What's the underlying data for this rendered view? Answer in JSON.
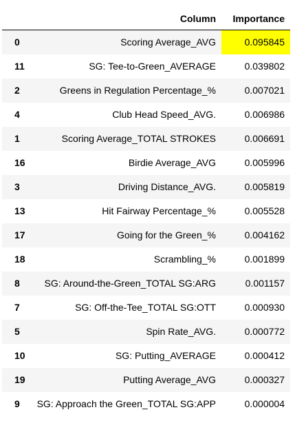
{
  "table": {
    "headers": {
      "index": "",
      "column": "Column",
      "importance": "Importance"
    },
    "highlight_color": "#ffff00",
    "rows": [
      {
        "index": "0",
        "column": "Scoring Average_AVG",
        "importance": "0.095845",
        "highlight": true
      },
      {
        "index": "11",
        "column": "SG: Tee-to-Green_AVERAGE",
        "importance": "0.039802",
        "highlight": false
      },
      {
        "index": "2",
        "column": "Greens in Regulation Percentage_%",
        "importance": "0.007021",
        "highlight": false
      },
      {
        "index": "4",
        "column": "Club Head Speed_AVG.",
        "importance": "0.006986",
        "highlight": false
      },
      {
        "index": "1",
        "column": "Scoring Average_TOTAL STROKES",
        "importance": "0.006691",
        "highlight": false
      },
      {
        "index": "16",
        "column": "Birdie Average_AVG",
        "importance": "0.005996",
        "highlight": false
      },
      {
        "index": "3",
        "column": "Driving Distance_AVG.",
        "importance": "0.005819",
        "highlight": false
      },
      {
        "index": "13",
        "column": "Hit Fairway Percentage_%",
        "importance": "0.005528",
        "highlight": false
      },
      {
        "index": "17",
        "column": "Going for the Green_%",
        "importance": "0.004162",
        "highlight": false
      },
      {
        "index": "18",
        "column": "Scrambling_%",
        "importance": "0.001899",
        "highlight": false
      },
      {
        "index": "8",
        "column": "SG: Around-the-Green_TOTAL SG:ARG",
        "importance": "0.001157",
        "highlight": false
      },
      {
        "index": "7",
        "column": "SG: Off-the-Tee_TOTAL SG:OTT",
        "importance": "0.000930",
        "highlight": false
      },
      {
        "index": "5",
        "column": "Spin Rate_AVG.",
        "importance": "0.000772",
        "highlight": false
      },
      {
        "index": "10",
        "column": "SG: Putting_AVERAGE",
        "importance": "0.000412",
        "highlight": false
      },
      {
        "index": "19",
        "column": "Putting Average_AVG",
        "importance": "0.000327",
        "highlight": false
      },
      {
        "index": "9",
        "column": "SG: Approach the Green_TOTAL SG:APP",
        "importance": "0.000004",
        "highlight": false
      }
    ]
  }
}
